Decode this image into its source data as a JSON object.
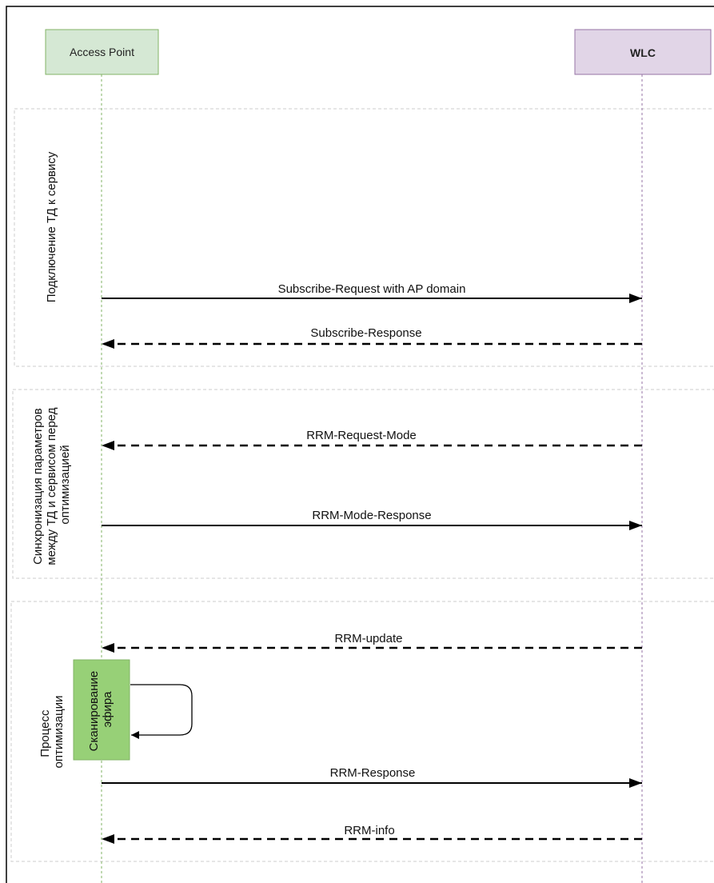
{
  "participants": [
    {
      "id": "ap",
      "label": "Access Point",
      "fill": "#d5e8d4",
      "stroke": "#82b366",
      "lifeline": "#82b366"
    },
    {
      "id": "wlc",
      "label": "WLC",
      "fill": "#e1d5e7",
      "stroke": "#9673a6",
      "lifeline": "#9673a6"
    }
  ],
  "phases": [
    {
      "id": "connect",
      "label_lines": [
        "Подключение ТД к сервису"
      ]
    },
    {
      "id": "sync",
      "label_lines": [
        "Синхронизация параметров",
        "между ТД и сервисом перед",
        "оптимизацией"
      ]
    },
    {
      "id": "optimize",
      "label_lines": [
        "Процесс",
        "оптимизации"
      ]
    }
  ],
  "messages": [
    {
      "id": "m1",
      "label": "Subscribe-Request with AP domain",
      "from": "ap",
      "to": "wlc",
      "style": "solid"
    },
    {
      "id": "m2",
      "label": "Subscribe-Response",
      "from": "wlc",
      "to": "ap",
      "style": "dashed"
    },
    {
      "id": "m3",
      "label": "RRM-Request-Mode",
      "from": "wlc",
      "to": "ap",
      "style": "dashed"
    },
    {
      "id": "m4",
      "label": "RRM-Mode-Response",
      "from": "ap",
      "to": "wlc",
      "style": "solid"
    },
    {
      "id": "m5",
      "label": "RRM-update",
      "from": "wlc",
      "to": "ap",
      "style": "dashed"
    },
    {
      "id": "m6",
      "label": "RRM-Response",
      "from": "ap",
      "to": "wlc",
      "style": "solid"
    },
    {
      "id": "m7",
      "label": "RRM-info",
      "from": "wlc",
      "to": "ap",
      "style": "dashed"
    }
  ],
  "activity": {
    "label_lines": [
      "Сканирование",
      "эфира"
    ],
    "fill": "#97d077",
    "stroke": "#82b366"
  },
  "colors": {
    "frame": "#000000",
    "phase_border": "#cccccc",
    "arrow": "#000000"
  }
}
